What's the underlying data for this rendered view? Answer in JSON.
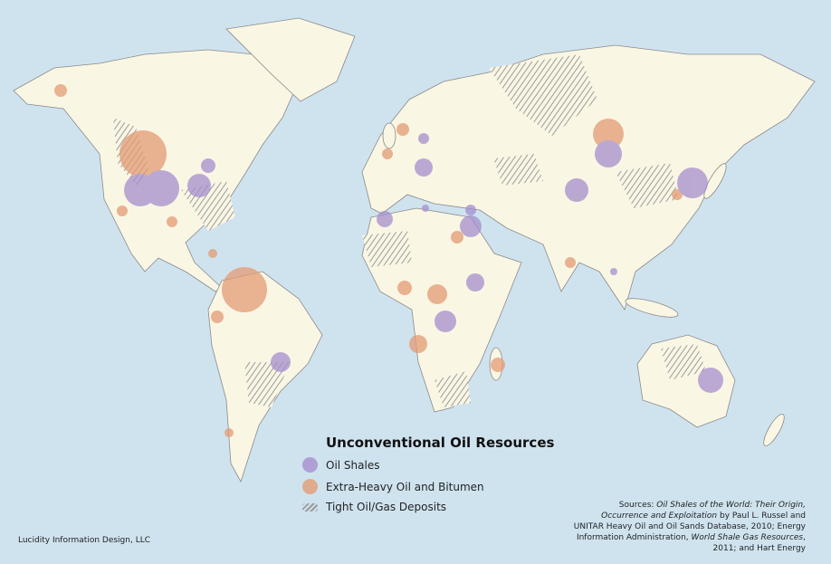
{
  "legend": {
    "title": "Unconventional Oil Resources",
    "items": [
      {
        "label": "Oil Shales",
        "color": "#a58fce"
      },
      {
        "label": "Extra-Heavy Oil and Bitumen",
        "color": "#e39b74"
      },
      {
        "label": "Tight Oil/Gas Deposits",
        "color": "#9c9c9c"
      }
    ]
  },
  "credit": "Lucidity Information Design, LLC",
  "sources": [
    {
      "text": "Sources: ",
      "italic": false
    },
    {
      "text": "Oil Shales of the World: Their Origin, Occurrence and Exploitation",
      "italic": true
    },
    {
      "text": " by Paul L. Russel and UNITAR Heavy Oil and Oil Sands Database, 2010; Energy Information Administration, ",
      "italic": false
    },
    {
      "text": "World Shale Gas Resources",
      "italic": true
    },
    {
      "text": ", 2011; and Hart Energy",
      "italic": false
    }
  ]
}
